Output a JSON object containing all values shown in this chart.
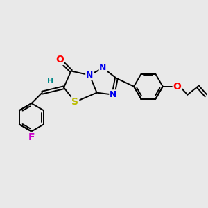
{
  "bg_color": "#e9e9e9",
  "bond_color": "#000000",
  "bond_width": 1.4,
  "atom_colors": {
    "O": "#ff0000",
    "N": "#0000ee",
    "S": "#bbbb00",
    "F": "#cc00cc",
    "H": "#008888"
  },
  "fig_bg": "#e9e9e9",
  "xlim": [
    0,
    10
  ],
  "ylim": [
    0,
    10
  ]
}
